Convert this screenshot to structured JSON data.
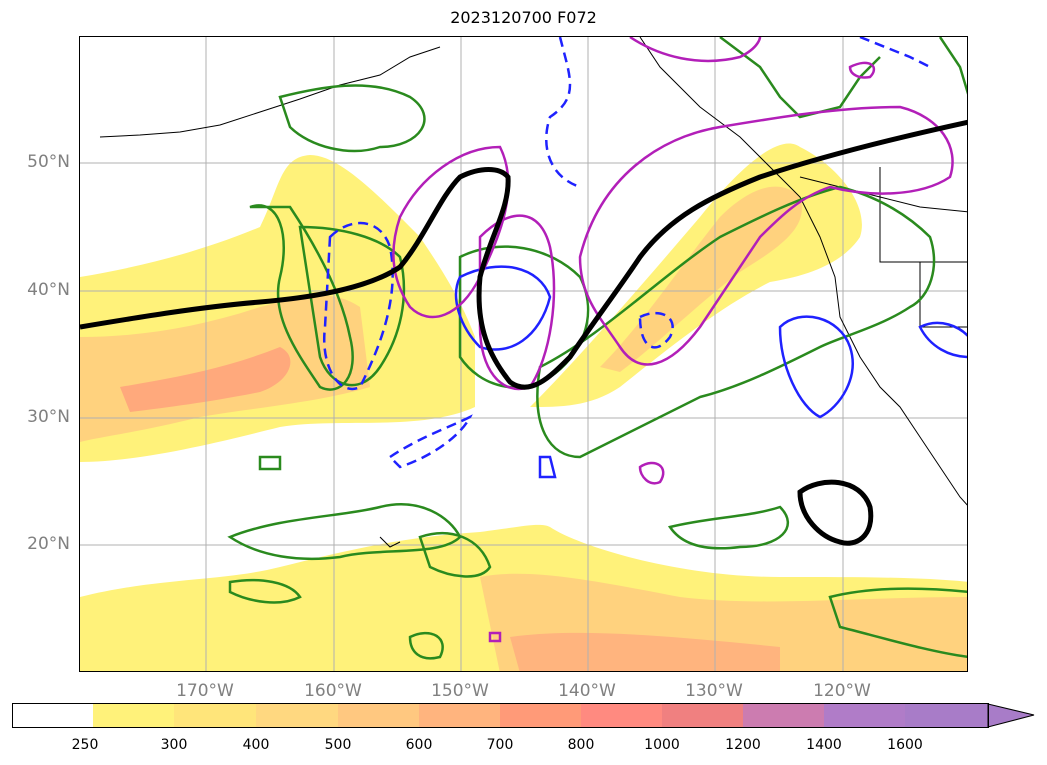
{
  "title": "2023120700 F072",
  "lat_labels": [
    {
      "text": "50°N",
      "lat": 50
    },
    {
      "text": "40°N",
      "lat": 40
    },
    {
      "text": "30°N",
      "lat": 30
    },
    {
      "text": "20°N",
      "lat": 20
    }
  ],
  "lon_labels": [
    {
      "text": "170°W",
      "lon": -170
    },
    {
      "text": "160°W",
      "lon": -160
    },
    {
      "text": "150°W",
      "lon": -150
    },
    {
      "text": "140°W",
      "lon": -140
    },
    {
      "text": "130°W",
      "lon": -130
    },
    {
      "text": "120°W",
      "lon": -120
    }
  ],
  "colorbar": {
    "ticks": [
      "250",
      "300",
      "400",
      "500",
      "600",
      "700",
      "800",
      "1000",
      "1200",
      "1400",
      "1600"
    ],
    "colors": [
      "#ffffff",
      "#fff27a",
      "#ffe57a",
      "#ffd880",
      "#ffc880",
      "#ffb47e",
      "#ff9a78",
      "#ff8a80",
      "#f08080",
      "#cc7cb0",
      "#b07cc8",
      "#a87cc8"
    ]
  },
  "contour_colors": {
    "fill_low": "#fff27a",
    "fill_mid": "#ffd27e",
    "fill_high": "#ff9f7c",
    "green": "#2a8a1e",
    "blue": "#1f22ff",
    "magenta": "#b21fb8",
    "black": "#000000"
  }
}
